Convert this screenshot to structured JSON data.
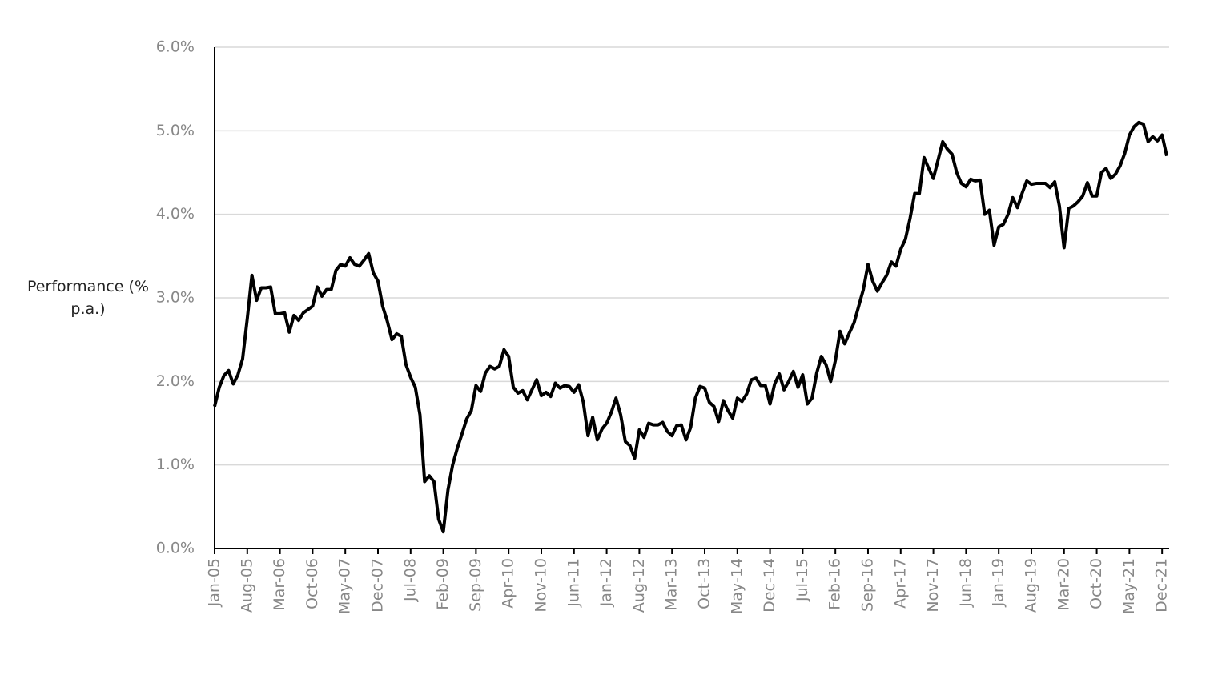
{
  "chart_data": {
    "type": "line",
    "y_label": "Performance (% p.a.)",
    "categories": [
      "Jan-05",
      null,
      null,
      null,
      null,
      null,
      null,
      "Aug-05",
      null,
      null,
      null,
      null,
      null,
      null,
      "Mar-06",
      null,
      null,
      null,
      null,
      null,
      null,
      "Oct-06",
      null,
      null,
      null,
      null,
      null,
      null,
      "May-07",
      null,
      null,
      null,
      null,
      null,
      null,
      "Dec-07",
      null,
      null,
      null,
      null,
      null,
      null,
      "Jul-08",
      null,
      null,
      null,
      null,
      null,
      null,
      "Feb-09",
      null,
      null,
      null,
      null,
      null,
      null,
      "Sep-09",
      null,
      null,
      null,
      null,
      null,
      null,
      "Apr-10",
      null,
      null,
      null,
      null,
      null,
      null,
      "Nov-10",
      null,
      null,
      null,
      null,
      null,
      null,
      "Jun-11",
      null,
      null,
      null,
      null,
      null,
      null,
      "Jan-12",
      null,
      null,
      null,
      null,
      null,
      null,
      "Aug-12",
      null,
      null,
      null,
      null,
      null,
      null,
      "Mar-13",
      null,
      null,
      null,
      null,
      null,
      null,
      "Oct-13",
      null,
      null,
      null,
      null,
      null,
      null,
      "May-14",
      null,
      null,
      null,
      null,
      null,
      null,
      "Dec-14",
      null,
      null,
      null,
      null,
      null,
      null,
      "Jul-15",
      null,
      null,
      null,
      null,
      null,
      null,
      "Feb-16",
      null,
      null,
      null,
      null,
      null,
      null,
      "Sep-16",
      null,
      null,
      null,
      null,
      null,
      null,
      "Apr-17",
      null,
      null,
      null,
      null,
      null,
      null,
      "Nov-17",
      null,
      null,
      null,
      null,
      null,
      null,
      "Jun-18",
      null,
      null,
      null,
      null,
      null,
      null,
      "Jan-19",
      null,
      null,
      null,
      null,
      null,
      null,
      "Aug-19",
      null,
      null,
      null,
      null,
      null,
      null,
      "Mar-20",
      null,
      null,
      null,
      null,
      null,
      null,
      "Oct-20",
      null,
      null,
      null,
      null,
      null,
      null,
      "May-21",
      null,
      null,
      null,
      null,
      null,
      null,
      "Dec-21",
      null
    ],
    "series": [
      {
        "color": "#000000",
        "values": [
          1.7,
          1.93,
          2.07,
          2.13,
          1.97,
          2.08,
          2.27,
          2.75,
          3.27,
          2.97,
          3.12,
          3.12,
          3.13,
          2.81,
          2.81,
          2.82,
          2.59,
          2.79,
          2.73,
          2.82,
          2.86,
          2.9,
          3.13,
          3.02,
          3.1,
          3.1,
          3.33,
          3.4,
          3.38,
          3.48,
          3.4,
          3.38,
          3.45,
          3.53,
          3.3,
          3.2,
          2.9,
          2.72,
          2.5,
          2.57,
          2.54,
          2.2,
          2.05,
          1.93,
          1.6,
          0.8,
          0.87,
          0.8,
          0.35,
          0.2,
          0.7,
          1.0,
          1.2,
          1.37,
          1.55,
          1.65,
          1.95,
          1.88,
          2.1,
          2.18,
          2.15,
          2.18,
          2.38,
          2.3,
          1.93,
          1.86,
          1.89,
          1.78,
          1.9,
          2.02,
          1.83,
          1.87,
          1.82,
          1.98,
          1.92,
          1.95,
          1.94,
          1.87,
          1.96,
          1.75,
          1.35,
          1.57,
          1.3,
          1.43,
          1.5,
          1.63,
          1.8,
          1.6,
          1.28,
          1.23,
          1.08,
          1.42,
          1.33,
          1.5,
          1.48,
          1.48,
          1.51,
          1.4,
          1.35,
          1.47,
          1.48,
          1.3,
          1.45,
          1.8,
          1.94,
          1.92,
          1.75,
          1.7,
          1.52,
          1.77,
          1.65,
          1.56,
          1.8,
          1.76,
          1.85,
          2.02,
          2.04,
          1.95,
          1.95,
          1.73,
          1.97,
          2.09,
          1.9,
          2.0,
          2.12,
          1.93,
          2.08,
          1.73,
          1.8,
          2.1,
          2.3,
          2.2,
          2.0,
          2.25,
          2.6,
          2.45,
          2.58,
          2.7,
          2.9,
          3.1,
          3.4,
          3.2,
          3.08,
          3.18,
          3.27,
          3.43,
          3.38,
          3.58,
          3.7,
          3.95,
          4.25,
          4.25,
          4.68,
          4.55,
          4.43,
          4.65,
          4.87,
          4.78,
          4.72,
          4.5,
          4.37,
          4.33,
          4.42,
          4.4,
          4.41,
          4.0,
          4.05,
          3.63,
          3.85,
          3.88,
          4.0,
          4.2,
          4.08,
          4.25,
          4.4,
          4.36,
          4.37,
          4.37,
          4.37,
          4.32,
          4.39,
          4.1,
          3.6,
          4.07,
          4.1,
          4.15,
          4.22,
          4.38,
          4.22,
          4.22,
          4.5,
          4.55,
          4.43,
          4.48,
          4.58,
          4.73,
          4.95,
          5.05,
          5.1,
          5.08,
          4.87,
          4.93,
          4.88,
          4.95,
          4.7
        ]
      }
    ],
    "ylim": [
      0,
      6
    ],
    "yticks": [
      {
        "value": 0,
        "label": "0.0%"
      },
      {
        "value": 1,
        "label": "1.0%"
      },
      {
        "value": 2,
        "label": "2.0%"
      },
      {
        "value": 3,
        "label": "3.0%"
      },
      {
        "value": 4,
        "label": "4.0%"
      },
      {
        "value": 5,
        "label": "5.0%"
      },
      {
        "value": 6,
        "label": "6.0%"
      }
    ],
    "grid": true
  }
}
